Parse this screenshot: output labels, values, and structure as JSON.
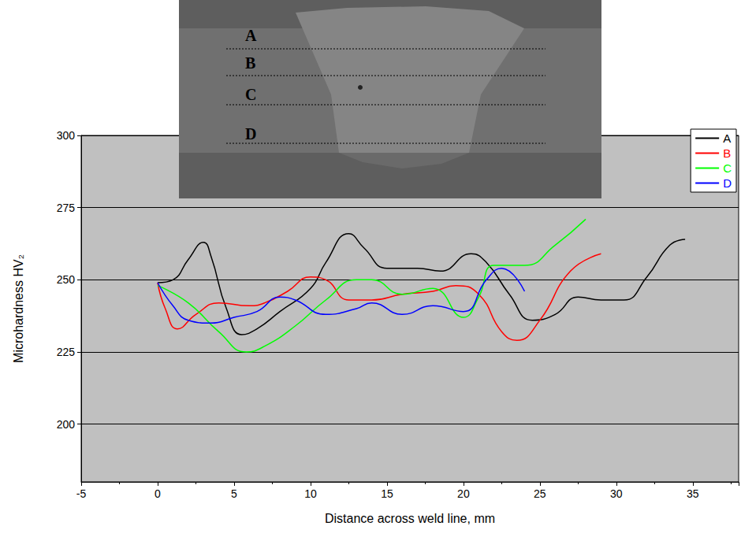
{
  "chart_data": {
    "type": "line",
    "x_label": "Distance across weld line, mm",
    "y_label": "Microhardness HV₂",
    "annotations": [
      "A",
      "B",
      "C",
      "D"
    ],
    "xlim": [
      -5,
      38
    ],
    "xticks": [
      -5,
      0,
      5,
      10,
      15,
      20,
      25,
      30,
      35
    ],
    "ylim": [
      180,
      300
    ],
    "yticks": [
      200,
      225,
      250,
      275,
      300
    ],
    "grid": true,
    "legend": "upper right",
    "line_style": "solid",
    "series": [
      {
        "name": "A",
        "color": "#000000",
        "x": [
          0,
          1,
          2,
          3,
          3.5,
          4.5,
          5.5,
          6.5,
          8,
          10,
          11,
          12.5,
          13.5,
          15,
          17,
          18.5,
          20.5,
          21.5,
          23,
          24.5,
          26,
          27.5,
          29,
          30.5,
          32,
          33.5,
          34.5
        ],
        "values": [
          249,
          250,
          257,
          263,
          258,
          240,
          231,
          233,
          239,
          247,
          256,
          266,
          261,
          254,
          254,
          253,
          259,
          256,
          245,
          236,
          238,
          244,
          243,
          243,
          251,
          262,
          264
        ]
      },
      {
        "name": "B",
        "color": "#ff0000",
        "x": [
          0,
          0.5,
          1.3,
          2.5,
          4,
          6,
          7,
          8.5,
          10,
          11,
          12.5,
          14,
          16,
          18,
          19.5,
          21,
          22.5,
          23.5,
          25,
          27,
          29
        ],
        "values": [
          249,
          240,
          233,
          238,
          242,
          241,
          242,
          246,
          251,
          250,
          243,
          243,
          245,
          246,
          248,
          245,
          232,
          229,
          236,
          253,
          259
        ]
      },
      {
        "name": "C",
        "color": "#00ff00",
        "x": [
          0,
          2,
          4,
          5.8,
          7,
          9,
          11,
          13,
          14,
          16,
          18,
          20,
          21,
          22,
          24,
          26,
          28
        ],
        "values": [
          248,
          242,
          232,
          225,
          227,
          234,
          243,
          250,
          250,
          245,
          247,
          237,
          244,
          255,
          255,
          262,
          271
        ]
      },
      {
        "name": "D",
        "color": "#0000ff",
        "x": [
          0,
          1,
          2,
          3.5,
          5,
          6.5,
          8,
          9,
          11,
          13,
          14,
          16,
          18,
          20,
          21.5,
          22.5,
          24
        ],
        "values": [
          249,
          241,
          236,
          235,
          237,
          239,
          244,
          243,
          238,
          240,
          242,
          238,
          241,
          239,
          250,
          254,
          246
        ]
      }
    ]
  }
}
